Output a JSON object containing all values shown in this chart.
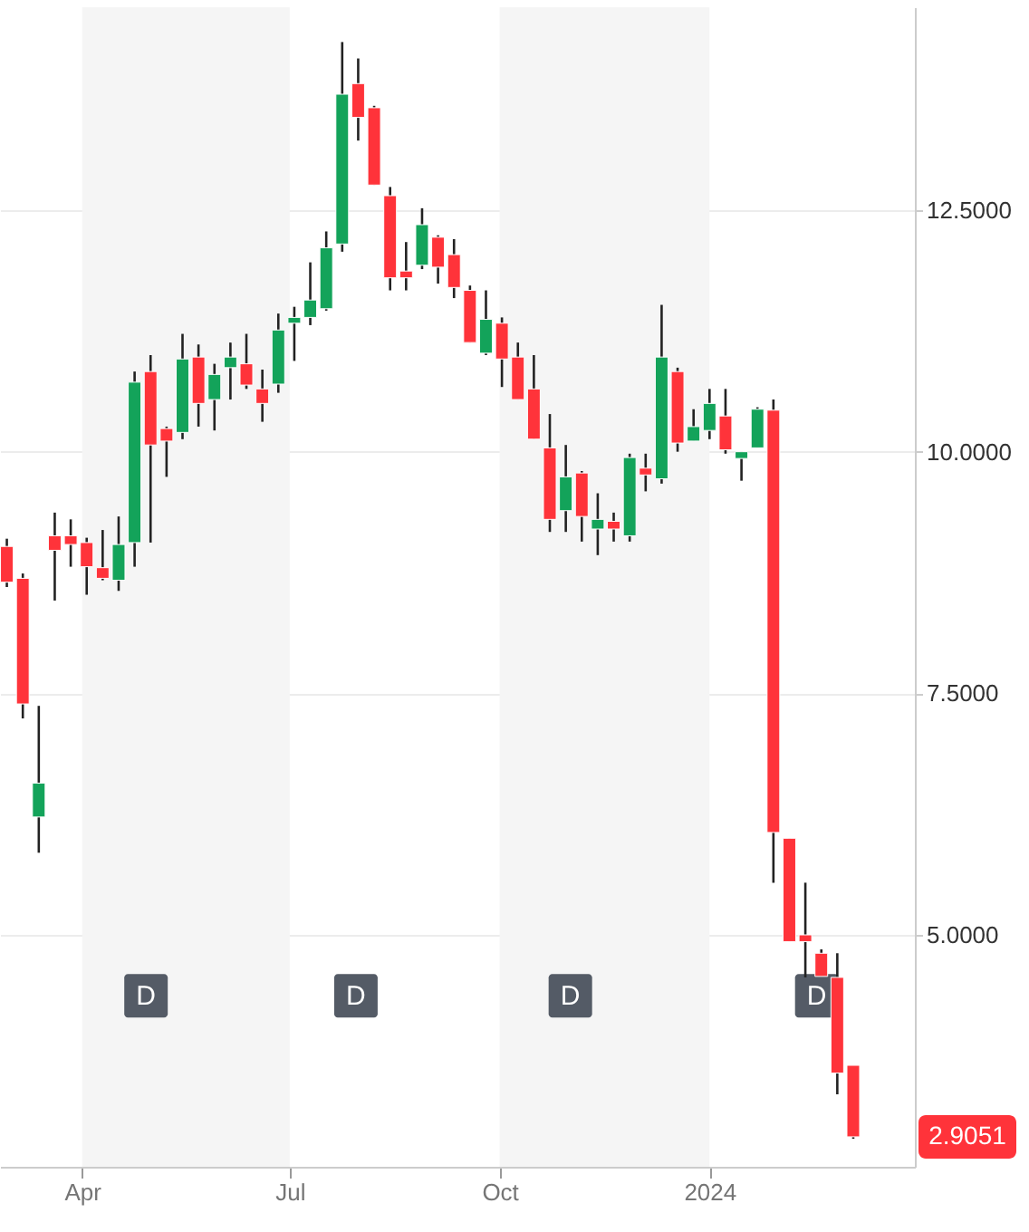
{
  "chart_data": {
    "type": "candlestick",
    "x": [
      "2023-02-27",
      "2023-03-06",
      "2023-03-13",
      "2023-03-20",
      "2023-03-27",
      "2023-04-03",
      "2023-04-10",
      "2023-04-17",
      "2023-04-24",
      "2023-05-01",
      "2023-05-08",
      "2023-05-15",
      "2023-05-22",
      "2023-05-29",
      "2023-06-05",
      "2023-06-12",
      "2023-06-19",
      "2023-06-26",
      "2023-07-03",
      "2023-07-10",
      "2023-07-17",
      "2023-07-24",
      "2023-07-31",
      "2023-08-07",
      "2023-08-14",
      "2023-08-21",
      "2023-08-28",
      "2023-09-04",
      "2023-09-11",
      "2023-09-18",
      "2023-09-25",
      "2023-10-02",
      "2023-10-09",
      "2023-10-16",
      "2023-10-23",
      "2023-10-30",
      "2023-11-06",
      "2023-11-13",
      "2023-11-20",
      "2023-11-27",
      "2023-12-04",
      "2023-12-11",
      "2023-12-18",
      "2023-12-25",
      "2024-01-01",
      "2024-01-08",
      "2024-01-15",
      "2024-01-22",
      "2024-01-29",
      "2024-02-05",
      "2024-02-12",
      "2024-02-19",
      "2024-02-26",
      "2024-03-04"
    ],
    "ohlc": [
      [
        9.02,
        9.1,
        8.6,
        8.65
      ],
      [
        8.69,
        8.74,
        7.24,
        7.39
      ],
      [
        6.22,
        7.37,
        5.85,
        6.57
      ],
      [
        9.13,
        9.37,
        8.46,
        8.98
      ],
      [
        9.13,
        9.3,
        8.81,
        9.04
      ],
      [
        9.06,
        9.11,
        8.52,
        8.81
      ],
      [
        8.8,
        9.19,
        8.67,
        8.69
      ],
      [
        8.67,
        9.33,
        8.56,
        9.04
      ],
      [
        9.06,
        10.83,
        8.81,
        10.72
      ],
      [
        10.83,
        11.0,
        9.06,
        10.07
      ],
      [
        10.24,
        10.26,
        9.74,
        10.11
      ],
      [
        10.2,
        11.22,
        10.13,
        10.96
      ],
      [
        10.98,
        11.11,
        10.26,
        10.5
      ],
      [
        10.54,
        10.91,
        10.22,
        10.8
      ],
      [
        10.87,
        11.13,
        10.54,
        10.98
      ],
      [
        10.91,
        11.22,
        10.65,
        10.69
      ],
      [
        10.65,
        10.85,
        10.31,
        10.5
      ],
      [
        10.7,
        11.43,
        10.61,
        11.26
      ],
      [
        11.33,
        11.5,
        10.94,
        11.39
      ],
      [
        11.39,
        11.96,
        11.31,
        11.57
      ],
      [
        11.48,
        12.28,
        11.46,
        12.11
      ],
      [
        12.15,
        14.24,
        12.07,
        13.7
      ],
      [
        13.81,
        14.07,
        13.22,
        13.46
      ],
      [
        13.56,
        13.58,
        12.76,
        12.76
      ],
      [
        12.65,
        12.74,
        11.67,
        11.8
      ],
      [
        11.87,
        12.17,
        11.67,
        11.8
      ],
      [
        11.93,
        12.52,
        11.89,
        12.35
      ],
      [
        12.22,
        12.24,
        11.74,
        11.91
      ],
      [
        12.04,
        12.2,
        11.59,
        11.7
      ],
      [
        11.67,
        11.72,
        11.13,
        11.13
      ],
      [
        11.02,
        11.67,
        11.0,
        11.37
      ],
      [
        11.33,
        11.39,
        10.67,
        10.96
      ],
      [
        10.98,
        11.13,
        10.54,
        10.54
      ],
      [
        10.65,
        11.0,
        10.13,
        10.13
      ],
      [
        10.04,
        10.39,
        9.17,
        9.3
      ],
      [
        9.39,
        10.07,
        9.17,
        9.74
      ],
      [
        9.78,
        9.8,
        9.07,
        9.33
      ],
      [
        9.2,
        9.57,
        8.93,
        9.3
      ],
      [
        9.28,
        9.37,
        9.07,
        9.2
      ],
      [
        9.13,
        9.98,
        9.07,
        9.94
      ],
      [
        9.83,
        9.98,
        9.59,
        9.76
      ],
      [
        9.72,
        11.52,
        9.67,
        10.98
      ],
      [
        10.83,
        10.87,
        10.0,
        10.09
      ],
      [
        10.11,
        10.44,
        10.11,
        10.26
      ],
      [
        10.22,
        10.65,
        10.13,
        10.5
      ],
      [
        10.37,
        10.65,
        9.98,
        10.02
      ],
      [
        9.93,
        10.0,
        9.7,
        10.0
      ],
      [
        10.04,
        10.46,
        10.04,
        10.44
      ],
      [
        10.43,
        10.54,
        5.54,
        6.06
      ],
      [
        6.0,
        6.0,
        4.93,
        4.93
      ],
      [
        5.0,
        5.54,
        4.56,
        4.93
      ],
      [
        4.81,
        4.85,
        4.57,
        4.57
      ],
      [
        4.56,
        4.81,
        3.35,
        3.57
      ],
      [
        3.65,
        3.65,
        2.89,
        2.91
      ]
    ],
    "colors": [
      "#ff333a",
      "#ff333a",
      "#13a35a",
      "#ff333a",
      "#ff333a",
      "#ff333a",
      "#ff333a",
      "#13a35a",
      "#13a35a",
      "#ff333a",
      "#ff333a",
      "#13a35a",
      "#ff333a",
      "#13a35a",
      "#13a35a",
      "#ff333a",
      "#ff333a",
      "#13a35a",
      "#13a35a",
      "#13a35a",
      "#13a35a",
      "#13a35a",
      "#ff333a",
      "#ff333a",
      "#ff333a",
      "#ff333a",
      "#13a35a",
      "#ff333a",
      "#ff333a",
      "#ff333a",
      "#13a35a",
      "#ff333a",
      "#ff333a",
      "#ff333a",
      "#ff333a",
      "#13a35a",
      "#ff333a",
      "#13a35a",
      "#ff333a",
      "#13a35a",
      "#ff333a",
      "#13a35a",
      "#ff333a",
      "#13a35a",
      "#13a35a",
      "#ff333a",
      "#13a35a",
      "#13a35a",
      "#ff333a",
      "#ff333a",
      "#ff333a",
      "#ff333a",
      "#ff333a",
      "#ff333a"
    ],
    "xlim": [
      "2023-02-24",
      "2024-03-31"
    ],
    "xticks": [
      {
        "value": "2023-04-01",
        "label": "Apr"
      },
      {
        "value": "2023-07-01",
        "label": "Jul"
      },
      {
        "value": "2023-10-01",
        "label": "Oct"
      },
      {
        "value": "2024-01-01",
        "label": "2024"
      }
    ],
    "ylim": [
      2.6,
      14.6
    ],
    "yticks": [
      {
        "value": 5,
        "label": "5.0000"
      },
      {
        "value": 7.5,
        "label": "7.5000"
      },
      {
        "value": 10,
        "label": "10.0000"
      },
      {
        "value": 12.5,
        "label": "12.5000"
      }
    ],
    "grid": "y",
    "bands": [
      {
        "axis": "x",
        "from": "2023-04-01",
        "to": "2023-07-01",
        "color": "#f5f5f5"
      },
      {
        "axis": "x",
        "from": "2023-10-01",
        "to": "2024-01-01",
        "color": "#f5f5f5"
      }
    ],
    "annotations": [
      {
        "text": "D",
        "x": "2023-04-29",
        "y": 4.37
      },
      {
        "text": "D",
        "x": "2023-07-30",
        "y": 4.37
      },
      {
        "text": "D",
        "x": "2023-11-01",
        "y": 4.37
      },
      {
        "text": "D",
        "x": "2024-02-17",
        "y": 4.37
      },
      "2.9051"
    ]
  }
}
